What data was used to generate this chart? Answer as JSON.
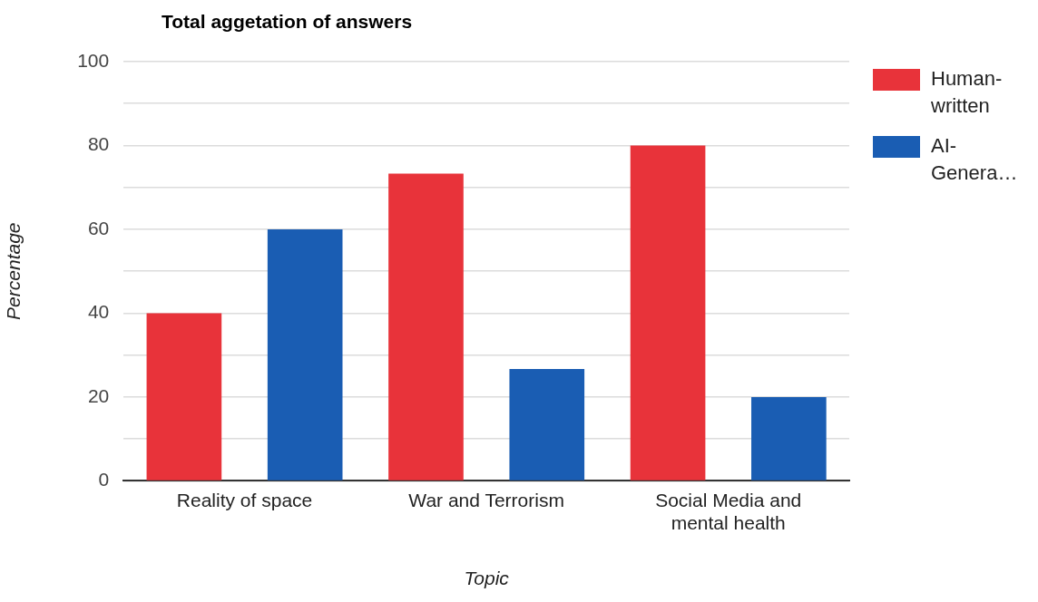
{
  "chart_data": {
    "type": "bar",
    "title": "Total aggetation of answers",
    "xlabel": "Topic",
    "ylabel": "Percentage",
    "categories": [
      "Reality of space",
      "War and Terrorism",
      "Social Media and mental health"
    ],
    "series": [
      {
        "name": "Human-written",
        "color": "#e8333a",
        "values": [
          40,
          73.3,
          80
        ]
      },
      {
        "name": "AI-Genera…",
        "color": "#1a5db3",
        "values": [
          60,
          26.7,
          20
        ]
      }
    ],
    "ylim": [
      0,
      100
    ],
    "yticks": [
      0,
      {
        "value": 10,
        "label": null
      },
      20,
      {
        "value": 30,
        "label": null
      },
      40,
      {
        "value": 50,
        "label": null
      },
      60,
      {
        "value": 70,
        "label": null
      },
      80,
      {
        "value": 90,
        "label": null
      },
      100
    ],
    "grid": "y",
    "legend": "right"
  }
}
